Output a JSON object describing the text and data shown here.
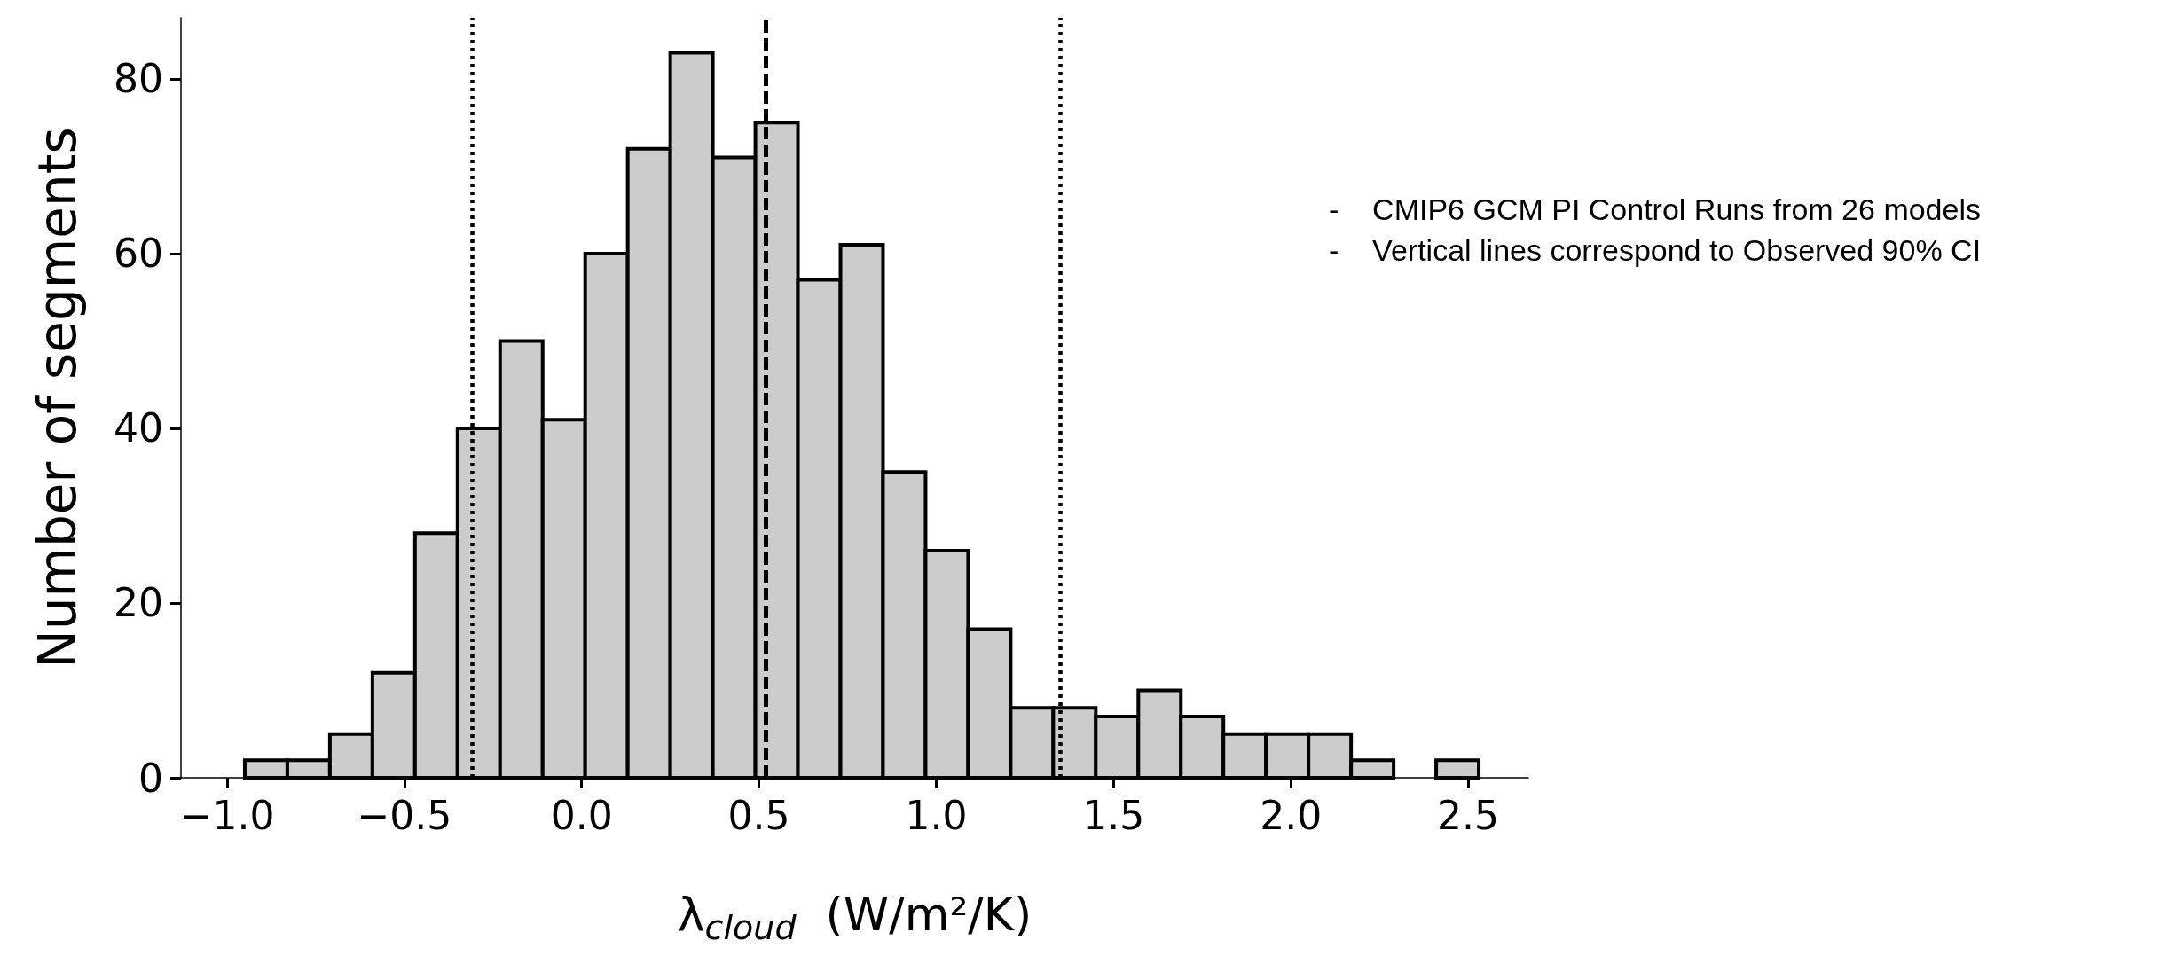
{
  "chart_data": {
    "type": "histogram",
    "xlabel": "λ$_{cloud}$  (W/m²/K)",
    "ylabel": "Number of segments",
    "bins": [
      -0.95,
      -0.83,
      -0.71,
      -0.59,
      -0.47,
      -0.35,
      -0.23,
      -0.11,
      0.01,
      0.13,
      0.25,
      0.37,
      0.49,
      0.61,
      0.73,
      0.85,
      0.97,
      1.09,
      1.21,
      1.33,
      1.45,
      1.57,
      1.69,
      1.81,
      1.93,
      2.05,
      2.17,
      2.29,
      2.41,
      2.53
    ],
    "values": [
      2,
      2,
      5,
      12,
      28,
      40,
      50,
      41,
      60,
      72,
      83,
      71,
      75,
      57,
      61,
      35,
      26,
      17,
      8,
      8,
      7,
      10,
      7,
      5,
      5,
      5,
      2,
      0,
      2
    ],
    "color": "#cccccc",
    "xlim": [
      -1.13,
      2.67
    ],
    "xticks": [
      {
        "value": -1,
        "label": "−1.0"
      },
      {
        "value": -0.5,
        "label": "−0.5"
      },
      {
        "value": 0,
        "label": "0.0"
      },
      {
        "value": 0.5,
        "label": "0.5"
      },
      {
        "value": 1,
        "label": "1.0"
      },
      {
        "value": 1.5,
        "label": "1.5"
      },
      {
        "value": 2,
        "label": "2.0"
      },
      {
        "value": 2.5,
        "label": "2.5"
      }
    ],
    "ylim": [
      0,
      87
    ],
    "yticks": [
      0,
      20,
      40,
      60,
      80
    ],
    "ref_lines": [
      {
        "axis": "x",
        "value": -0.31,
        "line_style": "dotted"
      },
      {
        "axis": "x",
        "value": 0.52,
        "line_style": "dashed"
      },
      {
        "axis": "x",
        "value": 1.35,
        "line_style": "dotted"
      }
    ],
    "annotations": [
      "-    CMIP6 GCM PI Control Runs from 26 models",
      "-    Vertical lines correspond to Observed 90% CI"
    ]
  }
}
